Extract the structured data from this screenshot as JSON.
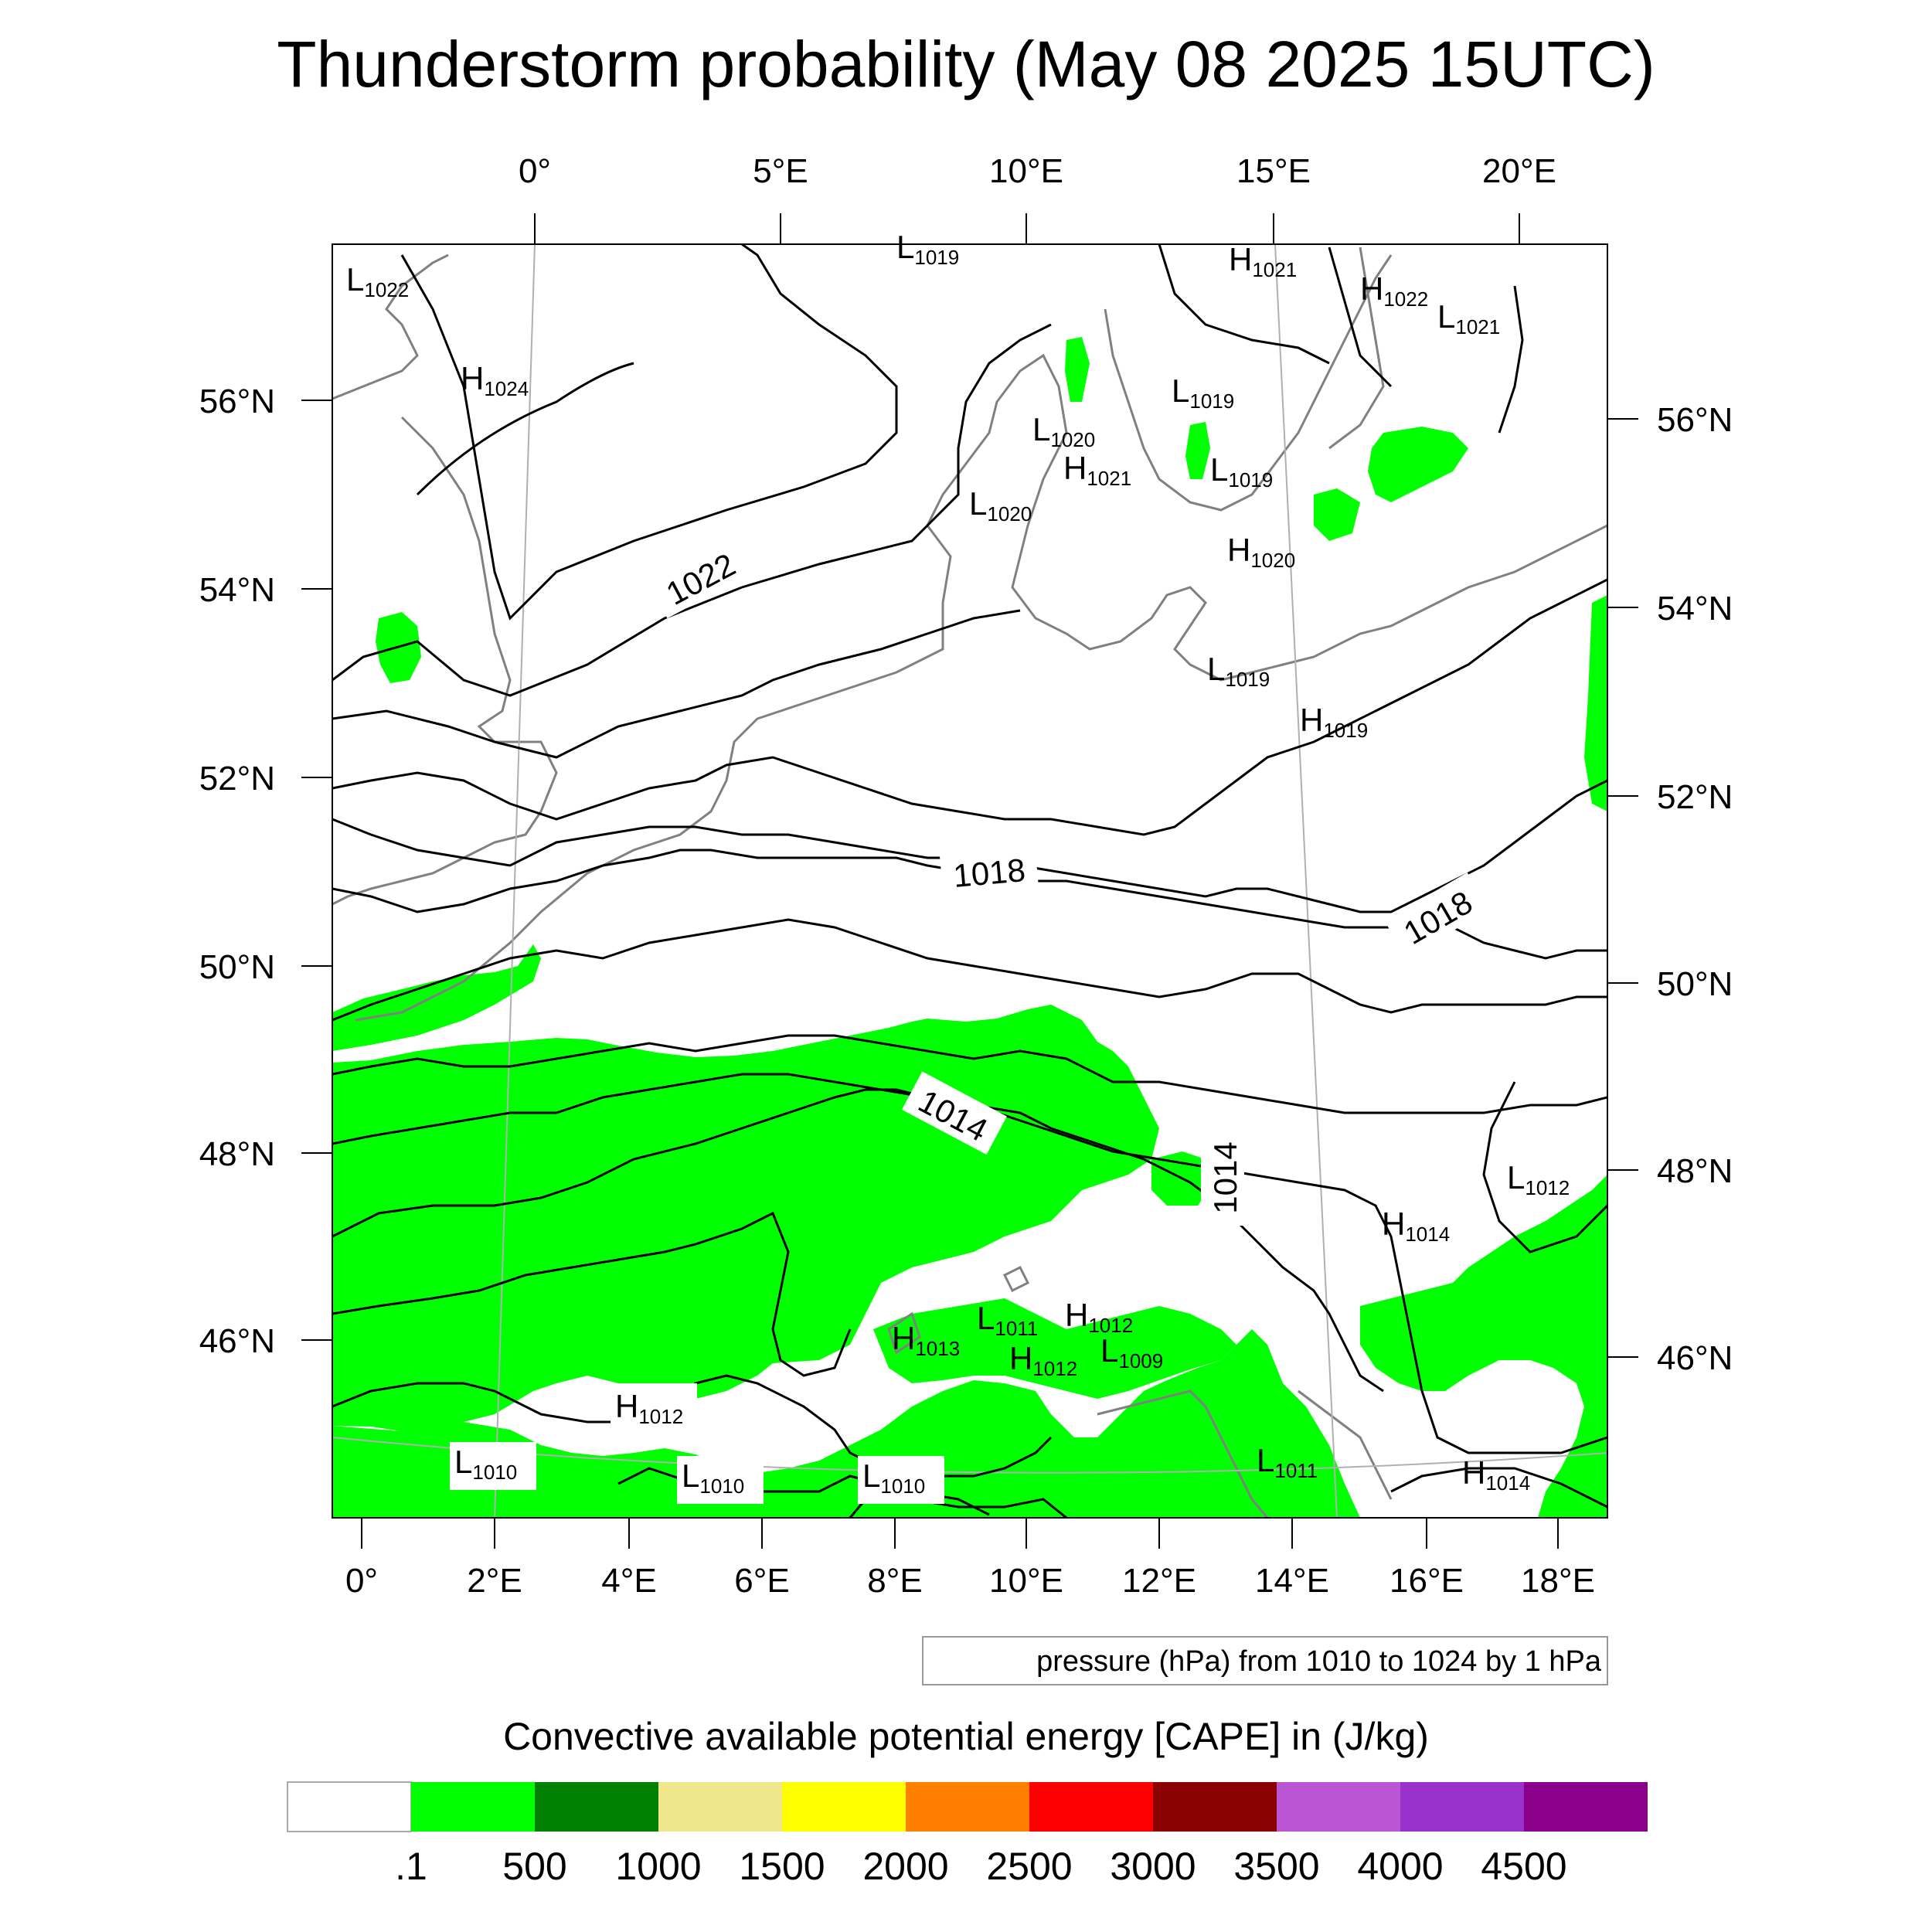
{
  "title": "Thunderstorm probability (May 08 2025 15UTC)",
  "top_axis_labels": [
    "0°",
    "5°E",
    "10°E",
    "15°E",
    "20°E"
  ],
  "left_axis_labels": [
    "56°N",
    "54°N",
    "52°N",
    "50°N",
    "48°N",
    "46°N"
  ],
  "right_axis_labels": [
    "56°N",
    "54°N",
    "52°N",
    "50°N",
    "48°N",
    "46°N"
  ],
  "bottom_axis_labels": [
    "0°",
    "2°E",
    "4°E",
    "6°E",
    "8°E",
    "10°E",
    "12°E",
    "14°E",
    "16°E",
    "18°E"
  ],
  "contour_info": "pressure (hPa) from 1010 to 1024 by 1 hPa",
  "isobar_labels": [
    "1022",
    "1018",
    "1018",
    "1014",
    "1014"
  ],
  "pressure_centers": [
    {
      "type": "L",
      "value": "1022"
    },
    {
      "type": "H",
      "value": "1024"
    },
    {
      "type": "L",
      "value": "1019"
    },
    {
      "type": "H",
      "value": "1021"
    },
    {
      "type": "H",
      "value": "1022"
    },
    {
      "type": "L",
      "value": "1021"
    },
    {
      "type": "L",
      "value": "1019"
    },
    {
      "type": "L",
      "value": "1020"
    },
    {
      "type": "H",
      "value": "1021"
    },
    {
      "type": "L",
      "value": "1019"
    },
    {
      "type": "L",
      "value": "1020"
    },
    {
      "type": "H",
      "value": "1020"
    },
    {
      "type": "L",
      "value": "1019"
    },
    {
      "type": "H",
      "value": "1019"
    },
    {
      "type": "L",
      "value": "1012"
    },
    {
      "type": "H",
      "value": "1014"
    },
    {
      "type": "H",
      "value": "1013"
    },
    {
      "type": "L",
      "value": "1011"
    },
    {
      "type": "H",
      "value": "1012"
    },
    {
      "type": "H",
      "value": "1012"
    },
    {
      "type": "L",
      "value": "1009"
    },
    {
      "type": "H",
      "value": "1012"
    },
    {
      "type": "L",
      "value": "1010"
    },
    {
      "type": "L",
      "value": "1010"
    },
    {
      "type": "L",
      "value": "1010"
    },
    {
      "type": "L",
      "value": "1011"
    },
    {
      "type": "H",
      "value": "1014"
    }
  ],
  "colorbar": {
    "title": "Convective available potential energy [CAPE] in (J/kg)",
    "colors": [
      "#ffffff",
      "#00ff00",
      "#008000",
      "#f0e68c",
      "#ffff00",
      "#ff8000",
      "#ff0000",
      "#8b0000",
      "#ba55d3",
      "#9932cc",
      "#8b008b"
    ],
    "labels": [
      ".1",
      "500",
      "1000",
      "1500",
      "2000",
      "2500",
      "3000",
      "3500",
      "4000",
      "4500"
    ]
  },
  "colors": {
    "cape_green": "#00ff00",
    "coastline": "#808080",
    "isobar": "#000000"
  }
}
